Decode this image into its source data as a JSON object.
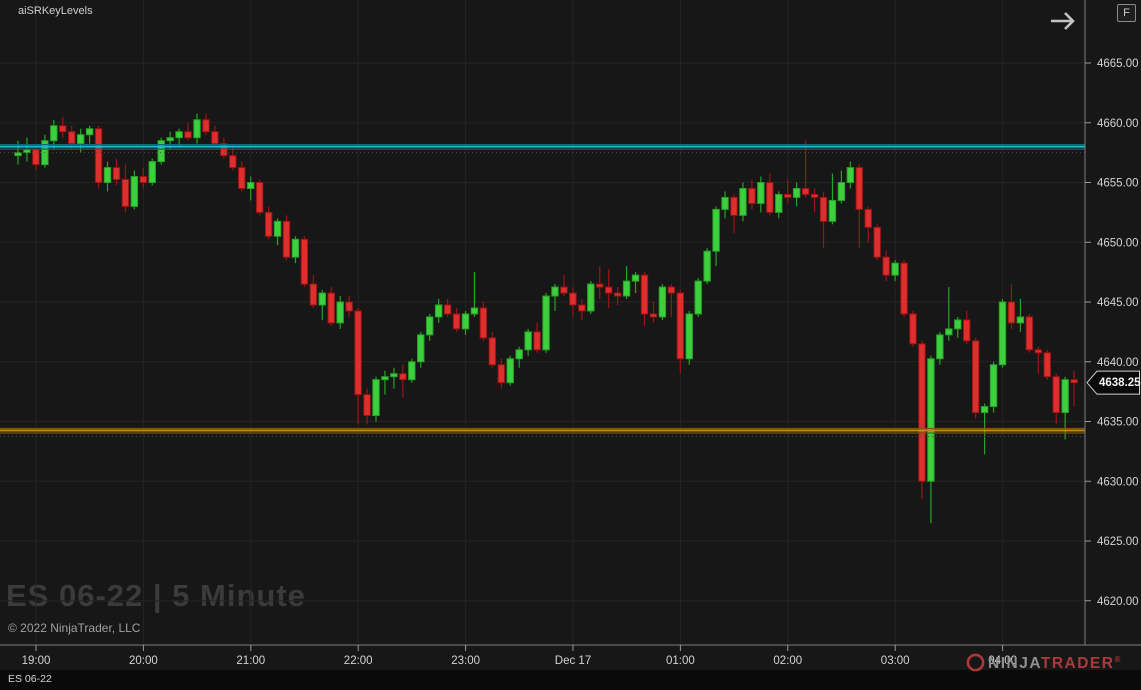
{
  "window": {
    "indicator_label": "aiSRKeyLevels",
    "fullscreen_button_label": "F",
    "watermark": "ES 06-22 | 5 Minute",
    "copyright": "© 2022 NinjaTrader, LLC",
    "bottom_tab": "ES 06-22",
    "brand": {
      "ninja": "NINJA",
      "trader": "TRADER",
      "registered": "®"
    }
  },
  "colors": {
    "background": "#171717",
    "grid": "#242424",
    "axis_line": "#7d7d7d",
    "tick_mark": "#9a9a9a",
    "axis_text": "#d4d4d4",
    "candle_up_fill": "#3ecf3e",
    "candle_up_stroke": "#26a426",
    "candle_down_fill": "#de2f2f",
    "candle_down_stroke": "#9d1414",
    "resistance_bright": "#1fb8cb",
    "resistance_dark": "#0c6a75",
    "support_bright": "#c8861e",
    "support_dark": "#7a5410",
    "marker_fill": "#0a0a0a",
    "marker_border": "#cfcfcf"
  },
  "chart_data": {
    "type": "candlestick",
    "symbol": "ES 06-22",
    "interval": "5 Minute",
    "last_price": 4638.25,
    "last_price_label": "4638.25",
    "y_axis": {
      "tick_labels": [
        "4665.00",
        "4660.00",
        "4655.00",
        "4650.00",
        "4645.00",
        "4640.00",
        "4635.00",
        "4630.00",
        "4625.00",
        "4620.00"
      ]
    },
    "x_axis": {
      "tick_labels": [
        "19:00",
        "20:00",
        "21:00",
        "22:00",
        "23:00",
        "Dec 17",
        "01:00",
        "02:00",
        "03:00",
        "04:00"
      ]
    },
    "levels": [
      {
        "name": "resistance-level",
        "price": 4658.0,
        "style": "cyan-double"
      },
      {
        "name": "support-level",
        "price": 4634.25,
        "style": "gold-double"
      }
    ],
    "candles": [
      [
        "18:50",
        4657.25,
        4658.5,
        4656.5,
        4657.5
      ],
      [
        "18:55",
        4657.5,
        4658.75,
        4656.75,
        4657.75
      ],
      [
        "19:00",
        4657.75,
        4658.25,
        4656.0,
        4656.5
      ],
      [
        "19:05",
        4656.5,
        4659.0,
        4656.25,
        4658.5
      ],
      [
        "19:10",
        4658.5,
        4660.25,
        4657.75,
        4659.75
      ],
      [
        "19:15",
        4659.75,
        4660.5,
        4658.75,
        4659.25
      ],
      [
        "19:20",
        4659.25,
        4659.75,
        4657.75,
        4658.25
      ],
      [
        "19:25",
        4658.25,
        4659.5,
        4657.5,
        4659.0
      ],
      [
        "19:30",
        4659.0,
        4659.75,
        4658.25,
        4659.5
      ],
      [
        "19:35",
        4659.5,
        4659.75,
        4654.5,
        4655.0
      ],
      [
        "19:40",
        4655.0,
        4656.75,
        4654.25,
        4656.25
      ],
      [
        "19:45",
        4656.25,
        4657.0,
        4654.75,
        4655.25
      ],
      [
        "19:50",
        4655.25,
        4656.5,
        4652.5,
        4653.0
      ],
      [
        "19:55",
        4653.0,
        4656.0,
        4652.75,
        4655.5
      ],
      [
        "20:00",
        4655.5,
        4656.25,
        4654.5,
        4655.0
      ],
      [
        "20:05",
        4655.0,
        4657.0,
        4654.75,
        4656.75
      ],
      [
        "20:10",
        4656.75,
        4658.75,
        4656.5,
        4658.5
      ],
      [
        "20:15",
        4658.5,
        4659.25,
        4657.75,
        4658.75
      ],
      [
        "20:20",
        4658.75,
        4659.5,
        4658.0,
        4659.25
      ],
      [
        "20:25",
        4659.25,
        4660.0,
        4658.5,
        4658.75
      ],
      [
        "20:30",
        4658.75,
        4660.75,
        4658.25,
        4660.25
      ],
      [
        "20:35",
        4660.25,
        4660.75,
        4659.0,
        4659.25
      ],
      [
        "20:40",
        4659.25,
        4659.75,
        4658.0,
        4658.25
      ],
      [
        "20:45",
        4658.25,
        4658.75,
        4657.0,
        4657.25
      ],
      [
        "20:50",
        4657.25,
        4658.25,
        4656.0,
        4656.25
      ],
      [
        "20:55",
        4656.25,
        4656.75,
        4654.25,
        4654.5
      ],
      [
        "21:00",
        4654.5,
        4655.5,
        4653.5,
        4655.0
      ],
      [
        "21:05",
        4655.0,
        4655.25,
        4652.25,
        4652.5
      ],
      [
        "21:10",
        4652.5,
        4653.0,
        4650.25,
        4650.5
      ],
      [
        "21:15",
        4650.5,
        4652.0,
        4649.75,
        4651.75
      ],
      [
        "21:20",
        4651.75,
        4652.25,
        4648.5,
        4648.75
      ],
      [
        "21:25",
        4648.75,
        4650.5,
        4648.25,
        4650.25
      ],
      [
        "21:30",
        4650.25,
        4650.5,
        4646.25,
        4646.5
      ],
      [
        "21:35",
        4646.5,
        4647.25,
        4644.5,
        4644.75
      ],
      [
        "21:40",
        4644.75,
        4646.0,
        4643.5,
        4645.75
      ],
      [
        "21:45",
        4645.75,
        4646.25,
        4643.0,
        4643.25
      ],
      [
        "21:50",
        4643.25,
        4645.5,
        4642.75,
        4645.0
      ],
      [
        "21:55",
        4645.0,
        4645.5,
        4643.75,
        4644.25
      ],
      [
        "22:00",
        4644.25,
        4644.5,
        4634.75,
        4637.25
      ],
      [
        "22:05",
        4637.25,
        4637.75,
        4634.75,
        4635.5
      ],
      [
        "22:10",
        4635.5,
        4638.75,
        4635.0,
        4638.5
      ],
      [
        "22:15",
        4638.5,
        4639.25,
        4637.25,
        4638.75
      ],
      [
        "22:20",
        4638.75,
        4639.5,
        4637.75,
        4639.0
      ],
      [
        "22:25",
        4639.0,
        4639.75,
        4637.0,
        4638.5
      ],
      [
        "22:30",
        4638.5,
        4640.25,
        4638.25,
        4640.0
      ],
      [
        "22:35",
        4640.0,
        4642.5,
        4639.5,
        4642.25
      ],
      [
        "22:40",
        4642.25,
        4644.0,
        4641.75,
        4643.75
      ],
      [
        "22:45",
        4643.75,
        4645.25,
        4643.25,
        4644.75
      ],
      [
        "22:50",
        4644.75,
        4645.25,
        4643.75,
        4644.0
      ],
      [
        "22:55",
        4644.0,
        4644.5,
        4642.5,
        4642.75
      ],
      [
        "23:00",
        4642.75,
        4644.25,
        4642.25,
        4644.0
      ],
      [
        "23:05",
        4644.0,
        4647.5,
        4643.75,
        4644.5
      ],
      [
        "23:10",
        4644.5,
        4645.0,
        4641.75,
        4642.0
      ],
      [
        "23:15",
        4642.0,
        4642.5,
        4639.5,
        4639.75
      ],
      [
        "23:20",
        4639.75,
        4640.25,
        4637.75,
        4638.25
      ],
      [
        "23:25",
        4638.25,
        4640.5,
        4638.0,
        4640.25
      ],
      [
        "23:30",
        4640.25,
        4641.25,
        4639.5,
        4641.0
      ],
      [
        "23:35",
        4641.0,
        4642.75,
        4640.5,
        4642.5
      ],
      [
        "23:40",
        4642.5,
        4643.25,
        4640.75,
        4641.0
      ],
      [
        "23:45",
        4641.0,
        4645.75,
        4640.75,
        4645.5
      ],
      [
        "23:50",
        4645.5,
        4646.5,
        4644.25,
        4646.25
      ],
      [
        "23:55",
        4646.25,
        4647.25,
        4645.5,
        4645.75
      ],
      [
        "00:00",
        4645.75,
        4646.25,
        4643.75,
        4644.75
      ],
      [
        "00:05",
        4644.75,
        4645.25,
        4643.5,
        4644.25
      ],
      [
        "00:10",
        4644.25,
        4646.75,
        4644.0,
        4646.5
      ],
      [
        "00:15",
        4646.5,
        4648.0,
        4645.25,
        4646.25
      ],
      [
        "00:20",
        4646.25,
        4647.75,
        4644.5,
        4645.75
      ],
      [
        "00:25",
        4645.75,
        4646.25,
        4644.75,
        4645.5
      ],
      [
        "00:30",
        4645.5,
        4648.0,
        4645.25,
        4646.75
      ],
      [
        "00:35",
        4646.75,
        4647.5,
        4645.75,
        4647.25
      ],
      [
        "00:40",
        4647.25,
        4647.5,
        4643.0,
        4644.0
      ],
      [
        "00:45",
        4644.0,
        4645.0,
        4643.25,
        4643.75
      ],
      [
        "00:50",
        4643.75,
        4646.5,
        4643.5,
        4646.25
      ],
      [
        "00:55",
        4646.25,
        4646.5,
        4643.75,
        4645.75
      ],
      [
        "01:00",
        4645.75,
        4646.0,
        4639.0,
        4640.25
      ],
      [
        "01:05",
        4640.25,
        4644.25,
        4639.75,
        4644.0
      ],
      [
        "01:10",
        4644.0,
        4647.0,
        4643.75,
        4646.75
      ],
      [
        "01:15",
        4646.75,
        4649.5,
        4646.5,
        4649.25
      ],
      [
        "01:20",
        4649.25,
        4653.0,
        4648.0,
        4652.75
      ],
      [
        "01:25",
        4652.75,
        4654.25,
        4652.0,
        4653.75
      ],
      [
        "01:30",
        4653.75,
        4654.0,
        4650.75,
        4652.25
      ],
      [
        "01:35",
        4652.25,
        4655.0,
        4651.75,
        4654.5
      ],
      [
        "01:40",
        4654.5,
        4655.25,
        4652.75,
        4653.25
      ],
      [
        "01:45",
        4653.25,
        4655.5,
        4652.5,
        4655.0
      ],
      [
        "01:50",
        4655.0,
        4655.75,
        4652.25,
        4652.5
      ],
      [
        "01:55",
        4652.5,
        4654.25,
        4652.0,
        4654.0
      ],
      [
        "02:00",
        4654.0,
        4655.25,
        4653.25,
        4653.75
      ],
      [
        "02:05",
        4653.75,
        4655.0,
        4653.0,
        4654.5
      ],
      [
        "02:10",
        4654.5,
        4658.5,
        4653.75,
        4654.0
      ],
      [
        "02:15",
        4654.0,
        4654.5,
        4652.5,
        4653.75
      ],
      [
        "02:20",
        4653.75,
        4654.25,
        4649.5,
        4651.75
      ],
      [
        "02:25",
        4651.75,
        4655.75,
        4651.5,
        4653.5
      ],
      [
        "02:30",
        4653.5,
        4656.0,
        4653.25,
        4655.0
      ],
      [
        "02:35",
        4655.0,
        4656.75,
        4654.5,
        4656.25
      ],
      [
        "02:40",
        4656.25,
        4656.5,
        4649.5,
        4652.75
      ],
      [
        "02:45",
        4652.75,
        4653.0,
        4650.0,
        4651.25
      ],
      [
        "02:50",
        4651.25,
        4651.5,
        4648.5,
        4648.75
      ],
      [
        "02:55",
        4648.75,
        4649.25,
        4646.75,
        4647.25
      ],
      [
        "03:00",
        4647.25,
        4648.5,
        4646.75,
        4648.25
      ],
      [
        "03:05",
        4648.25,
        4648.5,
        4643.75,
        4644.0
      ],
      [
        "03:10",
        4644.0,
        4644.25,
        4641.25,
        4641.5
      ],
      [
        "03:15",
        4641.5,
        4641.75,
        4628.5,
        4630.0
      ],
      [
        "03:20",
        4630.0,
        4640.5,
        4626.5,
        4640.25
      ],
      [
        "03:25",
        4640.25,
        4642.5,
        4639.75,
        4642.25
      ],
      [
        "03:30",
        4642.25,
        4646.25,
        4641.75,
        4642.75
      ],
      [
        "03:35",
        4642.75,
        4643.75,
        4642.0,
        4643.5
      ],
      [
        "03:40",
        4643.5,
        4644.25,
        4641.5,
        4641.75
      ],
      [
        "03:45",
        4641.75,
        4642.0,
        4635.25,
        4635.75
      ],
      [
        "03:50",
        4635.75,
        4636.5,
        4632.25,
        4636.25
      ],
      [
        "03:55",
        4636.25,
        4640.0,
        4635.75,
        4639.75
      ],
      [
        "04:00",
        4639.75,
        4645.25,
        4639.5,
        4645.0
      ],
      [
        "04:05",
        4645.0,
        4646.5,
        4642.75,
        4643.25
      ],
      [
        "04:10",
        4643.25,
        4645.25,
        4642.5,
        4643.75
      ],
      [
        "04:15",
        4643.75,
        4644.0,
        4640.75,
        4641.0
      ],
      [
        "04:20",
        4641.0,
        4641.25,
        4639.0,
        4640.75
      ],
      [
        "04:25",
        4640.75,
        4641.0,
        4638.5,
        4638.75
      ],
      [
        "04:30",
        4638.75,
        4639.0,
        4634.75,
        4635.75
      ],
      [
        "04:35",
        4635.75,
        4638.75,
        4633.5,
        4638.5
      ],
      [
        "04:40",
        4638.5,
        4639.25,
        4636.25,
        4638.25
      ]
    ]
  }
}
